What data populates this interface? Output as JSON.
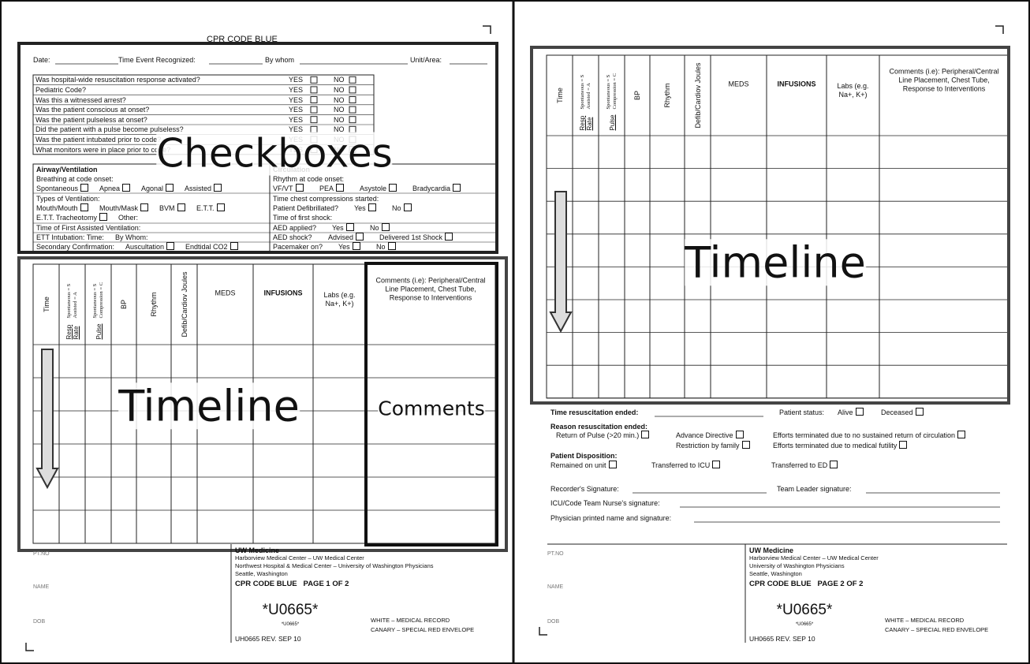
{
  "page1": {
    "title": "CPR CODE BLUE",
    "header_fields": [
      "Date:",
      "Time Event Recognized:",
      "By whom",
      "Unit/Area:"
    ],
    "questions": [
      "Was hospital-wide resuscitation response activated?",
      "Pediatric Code?",
      "Was this a witnessed arrest?",
      "Was the patient conscious at onset?",
      "Was the patient pulseless at onset?",
      "Did the patient with a pulse become pulseless?",
      "Was the patient intubated prior to code?",
      "What monitors were in place prior to code?"
    ],
    "yes": "YES",
    "no": "NO",
    "airway": {
      "title": "Airway/Ventilation",
      "lines": [
        [
          "Breathing at code onset:"
        ],
        [
          {
            "t": "Spontaneous",
            "box": true
          },
          {
            "t": "Apnea",
            "box": true
          },
          {
            "t": "Agonal",
            "box": true
          },
          {
            "t": "Assisted",
            "box": true
          }
        ],
        [
          "Types of Ventilation:"
        ],
        [
          {
            "t": "Mouth/Mouth",
            "box": true
          },
          {
            "t": "Mouth/Mask",
            "box": true
          },
          {
            "t": "BVM",
            "box": true
          },
          {
            "t": "E.T.T.",
            "box": true
          }
        ],
        [
          {
            "t": "E.T.T. Tracheotomy",
            "box": true
          },
          "Other:"
        ],
        [
          "Time of First Assisted Ventilation:"
        ],
        [
          "ETT Intubation: Time:",
          "By Whom:"
        ],
        [
          "Secondary Confirmation:",
          {
            "t": "Auscultation",
            "box": true
          },
          {
            "t": "Endtidal CO2",
            "box": true
          }
        ]
      ]
    },
    "circulation": {
      "title": "Circulation",
      "lines": [
        [
          "Rhythm at code onset:"
        ],
        [
          {
            "t": "VF/VT",
            "box": true
          },
          {
            "t": "PEA",
            "box": true
          },
          {
            "t": "Asystole",
            "box": true
          },
          {
            "t": "Bradycardia",
            "box": true
          }
        ],
        [
          "Time chest compressions started:"
        ],
        [
          "Patient Defibrillated?",
          {
            "t": "Yes",
            "box": true
          },
          {
            "t": "No",
            "box": true
          }
        ],
        [
          "Time of first shock:"
        ],
        [
          "AED applied?",
          {
            "t": "Yes",
            "box": true
          },
          {
            "t": "No",
            "box": true
          }
        ],
        [
          "AED shock?",
          {
            "t": "Advised",
            "box": true
          },
          {
            "t": "Delivered 1st Shock",
            "box": true
          }
        ],
        [
          "Pacemaker on?",
          {
            "t": "Yes",
            "box": true
          },
          {
            "t": "No",
            "box": true
          }
        ]
      ]
    },
    "columns": [
      {
        "label": "Time"
      },
      {
        "label": "Resp Rate",
        "note": "Spontaneous = S Assisted = A"
      },
      {
        "label": "Pulse",
        "note": "Spontaneous = S Compression = C"
      },
      {
        "label": "BP"
      },
      {
        "label": "Rhythm"
      },
      {
        "label": "Defib/Cardiov Joules"
      },
      {
        "label": "MEDS"
      },
      {
        "label": "INFUSIONS"
      },
      {
        "label": "Labs (e.g. Na+, K+)"
      },
      {
        "label": "Comments (i.e): Peripheral/Central Line Placement, Chest Tube, Response to Interventions"
      }
    ],
    "annotations": {
      "checkboxes": "Checkboxes",
      "timeline": "Timeline",
      "comments": "Comments"
    },
    "footer": {
      "pt_no": "PT.NO",
      "name": "NAME",
      "dob": "DOB",
      "org": "UW Medicine",
      "address": [
        "Harborview Medical Center – UW Medical Center",
        "Northwest Hospital & Medical Center – University of Washington Physicians",
        "Seattle, Washington"
      ],
      "page_label": "CPR CODE BLUE   PAGE 1 OF 2",
      "barcode": "*U0665*",
      "barcode_small": "*U0665*",
      "copies": [
        "WHITE – MEDICAL RECORD",
        "CANARY – SPECIAL RED ENVELOPE"
      ],
      "form_no": "UH0665 REV. SEP 10"
    }
  },
  "page2": {
    "columns": [
      {
        "label": "Time"
      },
      {
        "label": "Resp Rate",
        "note": "Spontaneous = S Assisted = A"
      },
      {
        "label": "Pulse",
        "note": "Spontaneous = S Compression = C"
      },
      {
        "label": "BP"
      },
      {
        "label": "Rhythm"
      },
      {
        "label": "Defib/Cardiov Joules"
      },
      {
        "label": "MEDS"
      },
      {
        "label": "INFUSIONS"
      },
      {
        "label": "Labs (e.g. Na+, K+)"
      },
      {
        "label": "Comments (i.e): Peripheral/Central Line Placement, Chest Tube, Response to Interventions"
      }
    ],
    "annotations": {
      "timeline": "Timeline"
    },
    "outcome": [
      [
        "Time resuscitation ended:",
        "Patient status:",
        {
          "t": "Alive",
          "box": true
        },
        {
          "t": "Deceased",
          "box": true
        }
      ],
      [
        "Reason resuscitation ended:"
      ],
      [
        {
          "t": "Return of Pulse (>20 min.)",
          "box": true
        },
        {
          "t": "Advance Directive",
          "box": true
        },
        {
          "t": "Efforts terminated due to no sustained return of circulation",
          "box": true
        }
      ],
      [
        {
          "t": "Restriction by family",
          "box": true
        },
        {
          "t": "Efforts terminated due to medical futility",
          "box": true
        }
      ],
      [
        "Patient Disposition:"
      ],
      [
        {
          "t": "Remained on unit",
          "box": true
        },
        {
          "t": "Transferred to ICU",
          "box": true
        },
        {
          "t": "Transferred to ED",
          "box": true
        }
      ],
      [
        "Recorder's Signature:",
        "Team Leader signature:"
      ],
      [
        "ICU/Code Team Nurse's signature:"
      ],
      [
        "Physician printed name and signature:"
      ]
    ],
    "footer": {
      "pt_no": "PT.NO",
      "name": "NAME",
      "dob": "DOB",
      "org": "UW Medicine",
      "address": [
        "Harborview Medical Center – UW Medical Center",
        "University of Washington Physicians",
        "Seattle, Washington"
      ],
      "page_label": "CPR CODE BLUE   PAGE 2 OF 2",
      "barcode": "*U0665*",
      "barcode_small": "*U0665*",
      "copies": [
        "WHITE – MEDICAL RECORD",
        "CANARY – SPECIAL RED ENVELOPE"
      ],
      "form_no": "UH0665 REV. SEP 10"
    }
  }
}
